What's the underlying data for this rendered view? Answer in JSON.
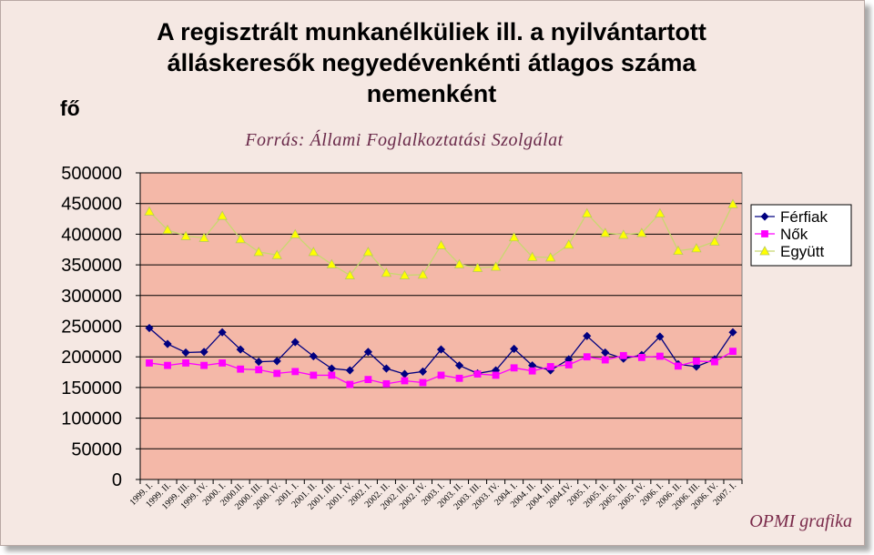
{
  "title_lines": [
    "A regisztrált munkanélküliek ill. a nyilvántartott",
    "álláskeresők negyedévenkénti átlagos száma",
    "nemenként"
  ],
  "unit_label": "fő",
  "source": "Forrás: Állami Foglalkoztatási Szolgálat",
  "credit": "OPMI grafika",
  "colors": {
    "plot_bg": "#f4b8a8",
    "ferfiak": "#000080",
    "nok": "#ff00ff",
    "egyutt_line": "#c8d870",
    "egyutt_marker": "#ffff00"
  },
  "chart_data": {
    "type": "line",
    "title": "A regisztrált munkanélküliek ill. a nyilvántartott álláskeresők negyedévenkénti átlagos száma nemenként",
    "ylabel": "fő",
    "ylim": [
      0,
      500000
    ],
    "ytick_step": 50000,
    "grid": true,
    "legend_position": "right",
    "categories": [
      "1999. I.",
      "1999. II.",
      "1999. III.",
      "1999. IV.",
      "2000. I.",
      "2000.II.",
      "2000. III.",
      "2000. IV.",
      "2001. I.",
      "2001. II.",
      "2001. III.",
      "2001. IV.",
      "2002. I.",
      "2002. II.",
      "2002. III.",
      "2002. IV.",
      "2003. I.",
      "2003. II.",
      "2003. III.",
      "2003. IV.",
      "2004. I.",
      "2004. II.",
      "2004. III.",
      "2004.IV.",
      "2005. I.",
      "2005. II.",
      "2005. III.",
      "2005. IV.",
      "2006. I.",
      "2006. II.",
      "2006. III.",
      "2006. IV.",
      "2007. I."
    ],
    "series": [
      {
        "name": "Férfiak",
        "color": "#000080",
        "marker": "diamond",
        "values": [
          247000,
          221000,
          207000,
          208000,
          240000,
          212000,
          192000,
          193000,
          224000,
          201000,
          181000,
          178000,
          208000,
          181000,
          172000,
          176000,
          212000,
          186000,
          173000,
          178000,
          213000,
          186000,
          178000,
          196000,
          234000,
          207000,
          197000,
          203000,
          233000,
          188000,
          184000,
          196000,
          240000
        ]
      },
      {
        "name": "Nők",
        "color": "#ff00ff",
        "marker": "square",
        "values": [
          190000,
          186000,
          190000,
          186000,
          190000,
          180000,
          179000,
          173000,
          176000,
          170000,
          170000,
          155000,
          163000,
          156000,
          161000,
          158000,
          170000,
          165000,
          172000,
          170000,
          182000,
          177000,
          184000,
          187000,
          200000,
          195000,
          202000,
          199000,
          201000,
          185000,
          193000,
          192000,
          209000
        ]
      },
      {
        "name": "Együtt",
        "color": "#c8d870",
        "marker": "triangle",
        "marker_color": "#ffff00",
        "values": [
          437000,
          407000,
          397000,
          394000,
          430000,
          392000,
          371000,
          366000,
          400000,
          371000,
          351000,
          333000,
          371000,
          337000,
          333000,
          334000,
          382000,
          351000,
          345000,
          347000,
          395000,
          363000,
          362000,
          383000,
          434000,
          402000,
          399000,
          402000,
          434000,
          373000,
          377000,
          388000,
          449000
        ]
      }
    ]
  }
}
